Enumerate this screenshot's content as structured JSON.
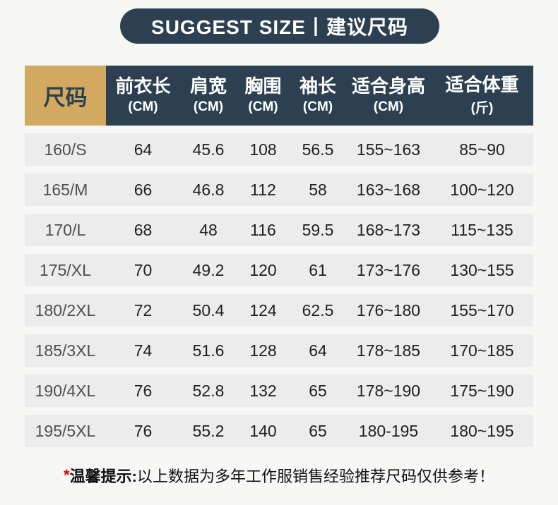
{
  "banner": {
    "title": "SUGGEST SIZE丨建议尺码"
  },
  "table": {
    "size_header": "尺码",
    "columns": [
      {
        "label": "前衣长",
        "unit": "(CM)"
      },
      {
        "label": "肩宽",
        "unit": "(CM)"
      },
      {
        "label": "胸围",
        "unit": "(CM)"
      },
      {
        "label": "袖长",
        "unit": "(CM)"
      },
      {
        "label": "适合身高",
        "unit": "(CM)"
      },
      {
        "label": "适合体重",
        "unit": "(斤)"
      }
    ],
    "rows": [
      {
        "size": "160/S",
        "values": [
          "64",
          "45.6",
          "108",
          "56.5",
          "155~163",
          "85~90"
        ]
      },
      {
        "size": "165/M",
        "values": [
          "66",
          "46.8",
          "112",
          "58",
          "163~168",
          "100~120"
        ]
      },
      {
        "size": "170/L",
        "values": [
          "68",
          "48",
          "116",
          "59.5",
          "168~173",
          "115~135"
        ]
      },
      {
        "size": "175/XL",
        "values": [
          "70",
          "49.2",
          "120",
          "61",
          "173~176",
          "130~155"
        ]
      },
      {
        "size": "180/2XL",
        "values": [
          "72",
          "50.4",
          "124",
          "62.5",
          "176~180",
          "155~170"
        ]
      },
      {
        "size": "185/3XL",
        "values": [
          "74",
          "51.6",
          "128",
          "64",
          "178~185",
          "170~185"
        ]
      },
      {
        "size": "190/4XL",
        "values": [
          "76",
          "52.8",
          "132",
          "65",
          "178~190",
          "175~190"
        ]
      },
      {
        "size": "195/5XL",
        "values": [
          "76",
          "55.2",
          "140",
          "65",
          "180-195",
          "180~195"
        ]
      }
    ]
  },
  "footer": {
    "asterisk": "*",
    "label": "温馨提示:",
    "text": "以上数据为多年工作服销售经验推荐尺码仅供参考！"
  },
  "colors": {
    "navy": "#2d4052",
    "gold": "#d2a95f",
    "row_bg": "#ececec",
    "page_bg": "#f7f7f6",
    "asterisk_red": "#e60012"
  }
}
